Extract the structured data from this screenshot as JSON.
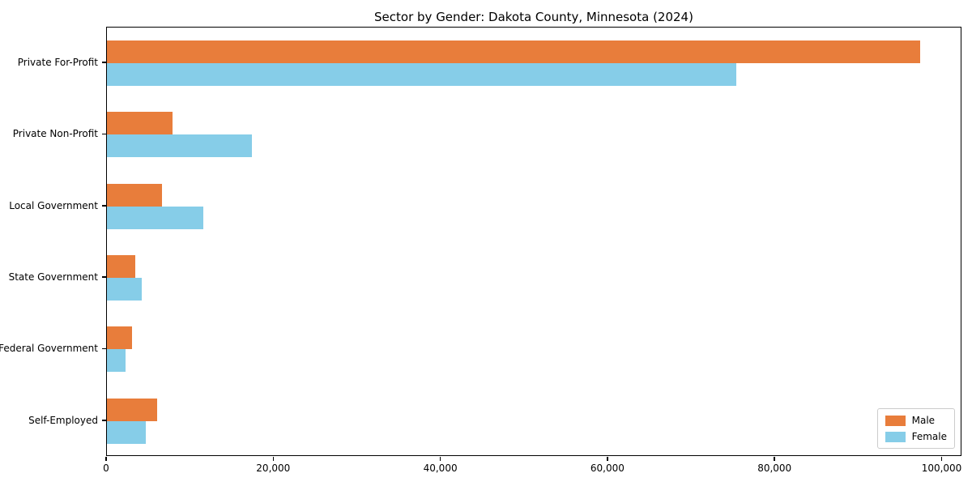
{
  "title": "Sector by Gender: Dakota County, Minnesota (2024)",
  "chart_data": {
    "type": "bar",
    "orientation": "horizontal",
    "title": "Sector by Gender: Dakota County, Minnesota (2024)",
    "categories": [
      "Private For-Profit",
      "Private Non-Profit",
      "Local Government",
      "State Government",
      "Federal Government",
      "Self-Employed"
    ],
    "series": [
      {
        "name": "Male",
        "color": "#e87d3b",
        "values": [
          97500,
          7900,
          6600,
          3400,
          3000,
          6000
        ]
      },
      {
        "name": "Female",
        "color": "#86cde8",
        "values": [
          75500,
          17400,
          11600,
          4200,
          2200,
          4700
        ]
      }
    ],
    "xlabel": "",
    "ylabel": "",
    "xlim": [
      0,
      102375
    ],
    "xticks": [
      0,
      20000,
      40000,
      60000,
      80000,
      100000
    ],
    "xtick_labels": [
      "0",
      "20,000",
      "40,000",
      "60,000",
      "80,000",
      "100,000"
    ],
    "grid": false,
    "legend_position": "lower right"
  }
}
